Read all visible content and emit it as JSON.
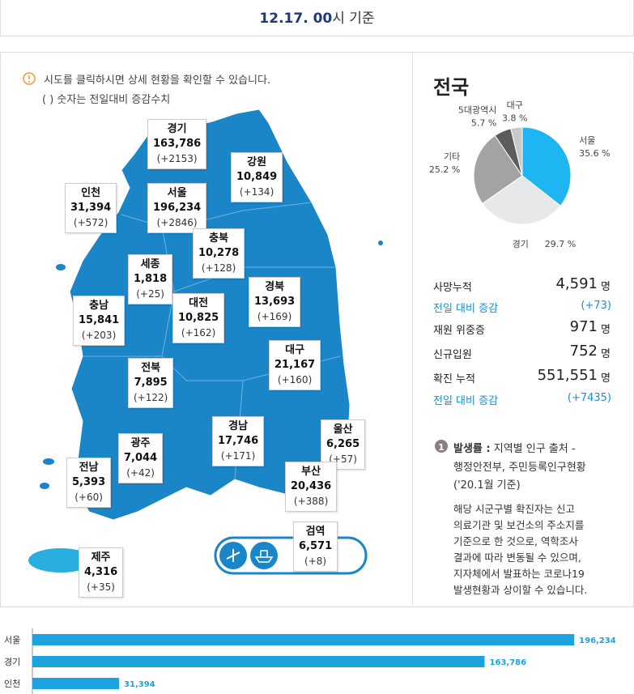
{
  "header": {
    "time": "12.17. 00",
    "suffix": "시 기준"
  },
  "notice": {
    "lines": [
      "시도를 클릭하시면 상세 현황을 확인할 수 있습니다.",
      "( ) 숫자는 전일대비 증감수치"
    ]
  },
  "regions": [
    {
      "name": "경기",
      "total": "163,786",
      "change": "(+2153)"
    },
    {
      "name": "강원",
      "total": "10,849",
      "change": "(+134)"
    },
    {
      "name": "인천",
      "total": "31,394",
      "change": "(+572)"
    },
    {
      "name": "서울",
      "total": "196,234",
      "change": "(+2846)"
    },
    {
      "name": "충북",
      "total": "10,278",
      "change": "(+128)"
    },
    {
      "name": "세종",
      "total": "1,818",
      "change": "(+25)"
    },
    {
      "name": "충남",
      "total": "15,841",
      "change": "(+203)"
    },
    {
      "name": "대전",
      "total": "10,825",
      "change": "(+162)"
    },
    {
      "name": "경북",
      "total": "13,693",
      "change": "(+169)"
    },
    {
      "name": "대구",
      "total": "21,167",
      "change": "(+160)"
    },
    {
      "name": "전북",
      "total": "7,895",
      "change": "(+122)"
    },
    {
      "name": "경남",
      "total": "17,746",
      "change": "(+171)"
    },
    {
      "name": "울산",
      "total": "6,265",
      "change": "(+57)"
    },
    {
      "name": "광주",
      "total": "7,044",
      "change": "(+42)"
    },
    {
      "name": "전남",
      "total": "5,393",
      "change": "(+60)"
    },
    {
      "name": "부산",
      "total": "20,436",
      "change": "(+388)"
    },
    {
      "name": "검역",
      "total": "6,571",
      "change": "(+8)"
    },
    {
      "name": "제주",
      "total": "4,316",
      "change": "(+35)"
    }
  ],
  "summary": {
    "title": "전국",
    "rows": [
      {
        "label": "사망누적",
        "value": "4,591",
        "unit": "명"
      },
      {
        "label": "전일 대비 증감",
        "value": "(+73)"
      },
      {
        "label": "재원 위중증",
        "value": "971",
        "unit": "명"
      },
      {
        "label": "신규입원",
        "value": "752",
        "unit": "명"
      },
      {
        "label": "확진 누적",
        "value": "551,551",
        "unit": "명"
      },
      {
        "label": "전일 대비 증감",
        "value": "(+7435)"
      }
    ]
  },
  "note": {
    "number": "1",
    "term": "발생률 :",
    "source_lines": [
      " 지역별 인구 출처 -",
      "행정안전부, 주민등록인구현황",
      "('20.1월 기준)"
    ],
    "disclaimer_lines": [
      "해당 시군구별 확진자는 신고",
      "의료기관 및 보건소의 주소지를",
      "기준으로 한 것으로, 역학조사",
      "결과에 따라 변동될 수 있으며,",
      "지자체에서 발표하는 코로나19",
      "발생현황과 상이할 수 있습니다."
    ]
  },
  "chart_data": [
    {
      "type": "pie",
      "categories": [
        "서울",
        "경기",
        "기타",
        "5대광역시",
        "대구"
      ],
      "values": [
        35.6,
        29.7,
        25.2,
        5.7,
        3.8
      ],
      "value_labels": [
        "35.6 %",
        "29.7 %",
        "25.2 %",
        "5.7 %",
        "3.8 %"
      ],
      "colors": [
        "#1fb5f2",
        "#e6e8e9",
        "#a3a3a3",
        "#5c5c5c",
        "#c9c9c9"
      ]
    },
    {
      "type": "bar",
      "orientation": "horizontal",
      "categories": [
        "서울",
        "경기",
        "인천"
      ],
      "values": [
        196234,
        163786,
        31394
      ],
      "value_labels": [
        "196,234",
        "163,786",
        "31,394"
      ],
      "color": "#1ca3de",
      "xlim": [
        0,
        217000
      ]
    }
  ]
}
